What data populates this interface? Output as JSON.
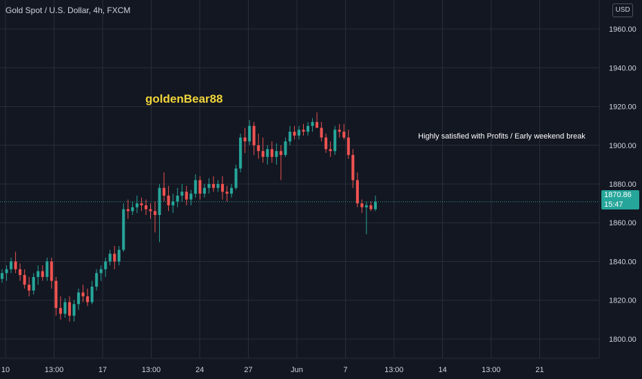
{
  "header": {
    "symbol": "Gold Spot / U.S. Dollar, 4h, FXCM"
  },
  "currency_button": "USD",
  "watermark": "goldenBear88",
  "last_price": {
    "value": "1870.86",
    "countdown": "15:47"
  },
  "colors": {
    "background": "#131722",
    "up": "#26a69a",
    "down": "#ef5350",
    "grid": "#2a2e39",
    "text": "#d1d4dc",
    "watermark": "#f0d53b"
  },
  "chart_data": {
    "type": "candlestick",
    "ylim": [
      1790,
      1975
    ],
    "y_ticks": [
      1800,
      1820,
      1840,
      1860,
      1880,
      1900,
      1920,
      1940,
      1960
    ],
    "x_ticks": [
      "10",
      "13:00",
      "17",
      "13:00",
      "24",
      "27",
      "Jun",
      "7",
      "13:00",
      "14",
      "13:00",
      "21"
    ],
    "annotations": [
      {
        "text": "Highly satisfied with Profits / Early weekend break"
      }
    ],
    "candles": [
      {
        "o": 1831,
        "h": 1836,
        "l": 1829,
        "c": 1834
      },
      {
        "o": 1834,
        "h": 1838,
        "l": 1830,
        "c": 1836
      },
      {
        "o": 1836,
        "h": 1842,
        "l": 1834,
        "c": 1840
      },
      {
        "o": 1840,
        "h": 1845,
        "l": 1834,
        "c": 1836
      },
      {
        "o": 1836,
        "h": 1839,
        "l": 1830,
        "c": 1833
      },
      {
        "o": 1833,
        "h": 1836,
        "l": 1826,
        "c": 1828
      },
      {
        "o": 1828,
        "h": 1832,
        "l": 1822,
        "c": 1825
      },
      {
        "o": 1825,
        "h": 1834,
        "l": 1823,
        "c": 1832
      },
      {
        "o": 1832,
        "h": 1838,
        "l": 1828,
        "c": 1835
      },
      {
        "o": 1835,
        "h": 1838,
        "l": 1830,
        "c": 1832
      },
      {
        "o": 1832,
        "h": 1842,
        "l": 1830,
        "c": 1840
      },
      {
        "o": 1840,
        "h": 1842,
        "l": 1826,
        "c": 1830
      },
      {
        "o": 1830,
        "h": 1832,
        "l": 1812,
        "c": 1816
      },
      {
        "o": 1816,
        "h": 1822,
        "l": 1810,
        "c": 1813
      },
      {
        "o": 1813,
        "h": 1821,
        "l": 1811,
        "c": 1819
      },
      {
        "o": 1819,
        "h": 1822,
        "l": 1809,
        "c": 1812
      },
      {
        "o": 1812,
        "h": 1820,
        "l": 1809,
        "c": 1818
      },
      {
        "o": 1818,
        "h": 1826,
        "l": 1815,
        "c": 1824
      },
      {
        "o": 1824,
        "h": 1828,
        "l": 1819,
        "c": 1822
      },
      {
        "o": 1822,
        "h": 1826,
        "l": 1817,
        "c": 1819
      },
      {
        "o": 1819,
        "h": 1830,
        "l": 1818,
        "c": 1827
      },
      {
        "o": 1827,
        "h": 1836,
        "l": 1825,
        "c": 1834
      },
      {
        "o": 1834,
        "h": 1838,
        "l": 1830,
        "c": 1836
      },
      {
        "o": 1836,
        "h": 1842,
        "l": 1832,
        "c": 1840
      },
      {
        "o": 1840,
        "h": 1846,
        "l": 1838,
        "c": 1844
      },
      {
        "o": 1844,
        "h": 1848,
        "l": 1836,
        "c": 1840
      },
      {
        "o": 1840,
        "h": 1848,
        "l": 1838,
        "c": 1846
      },
      {
        "o": 1846,
        "h": 1870,
        "l": 1845,
        "c": 1867
      },
      {
        "o": 1867,
        "h": 1872,
        "l": 1862,
        "c": 1866
      },
      {
        "o": 1866,
        "h": 1871,
        "l": 1864,
        "c": 1868
      },
      {
        "o": 1868,
        "h": 1874,
        "l": 1865,
        "c": 1870
      },
      {
        "o": 1870,
        "h": 1873,
        "l": 1866,
        "c": 1869
      },
      {
        "o": 1869,
        "h": 1872,
        "l": 1864,
        "c": 1867
      },
      {
        "o": 1867,
        "h": 1870,
        "l": 1862,
        "c": 1866
      },
      {
        "o": 1866,
        "h": 1871,
        "l": 1855,
        "c": 1864
      },
      {
        "o": 1864,
        "h": 1880,
        "l": 1850,
        "c": 1878
      },
      {
        "o": 1878,
        "h": 1886,
        "l": 1871,
        "c": 1874
      },
      {
        "o": 1874,
        "h": 1879,
        "l": 1866,
        "c": 1869
      },
      {
        "o": 1869,
        "h": 1875,
        "l": 1865,
        "c": 1871
      },
      {
        "o": 1871,
        "h": 1878,
        "l": 1868,
        "c": 1874
      },
      {
        "o": 1874,
        "h": 1880,
        "l": 1871,
        "c": 1876
      },
      {
        "o": 1876,
        "h": 1879,
        "l": 1869,
        "c": 1872
      },
      {
        "o": 1872,
        "h": 1877,
        "l": 1869,
        "c": 1875
      },
      {
        "o": 1875,
        "h": 1885,
        "l": 1873,
        "c": 1882
      },
      {
        "o": 1882,
        "h": 1884,
        "l": 1872,
        "c": 1875
      },
      {
        "o": 1875,
        "h": 1880,
        "l": 1873,
        "c": 1878
      },
      {
        "o": 1878,
        "h": 1883,
        "l": 1875,
        "c": 1880
      },
      {
        "o": 1880,
        "h": 1884,
        "l": 1876,
        "c": 1878
      },
      {
        "o": 1878,
        "h": 1882,
        "l": 1876,
        "c": 1880
      },
      {
        "o": 1880,
        "h": 1884,
        "l": 1872,
        "c": 1876
      },
      {
        "o": 1876,
        "h": 1879,
        "l": 1871,
        "c": 1875
      },
      {
        "o": 1875,
        "h": 1880,
        "l": 1873,
        "c": 1878
      },
      {
        "o": 1878,
        "h": 1890,
        "l": 1877,
        "c": 1888
      },
      {
        "o": 1888,
        "h": 1906,
        "l": 1886,
        "c": 1904
      },
      {
        "o": 1904,
        "h": 1909,
        "l": 1896,
        "c": 1902
      },
      {
        "o": 1902,
        "h": 1913,
        "l": 1900,
        "c": 1910
      },
      {
        "o": 1910,
        "h": 1912,
        "l": 1895,
        "c": 1900
      },
      {
        "o": 1900,
        "h": 1906,
        "l": 1893,
        "c": 1897
      },
      {
        "o": 1897,
        "h": 1904,
        "l": 1891,
        "c": 1894
      },
      {
        "o": 1894,
        "h": 1900,
        "l": 1890,
        "c": 1898
      },
      {
        "o": 1898,
        "h": 1902,
        "l": 1891,
        "c": 1894
      },
      {
        "o": 1894,
        "h": 1901,
        "l": 1890,
        "c": 1897
      },
      {
        "o": 1897,
        "h": 1900,
        "l": 1882,
        "c": 1895
      },
      {
        "o": 1895,
        "h": 1904,
        "l": 1894,
        "c": 1902
      },
      {
        "o": 1902,
        "h": 1910,
        "l": 1900,
        "c": 1907
      },
      {
        "o": 1907,
        "h": 1910,
        "l": 1903,
        "c": 1905
      },
      {
        "o": 1905,
        "h": 1910,
        "l": 1903,
        "c": 1908
      },
      {
        "o": 1908,
        "h": 1911,
        "l": 1905,
        "c": 1907
      },
      {
        "o": 1907,
        "h": 1912,
        "l": 1905,
        "c": 1910
      },
      {
        "o": 1910,
        "h": 1914,
        "l": 1907,
        "c": 1912
      },
      {
        "o": 1912,
        "h": 1917,
        "l": 1910,
        "c": 1909
      },
      {
        "o": 1909,
        "h": 1912,
        "l": 1902,
        "c": 1904
      },
      {
        "o": 1904,
        "h": 1906,
        "l": 1896,
        "c": 1898
      },
      {
        "o": 1898,
        "h": 1902,
        "l": 1894,
        "c": 1897
      },
      {
        "o": 1897,
        "h": 1910,
        "l": 1895,
        "c": 1908
      },
      {
        "o": 1908,
        "h": 1911,
        "l": 1904,
        "c": 1907
      },
      {
        "o": 1907,
        "h": 1911,
        "l": 1903,
        "c": 1904
      },
      {
        "o": 1904,
        "h": 1908,
        "l": 1893,
        "c": 1895
      },
      {
        "o": 1895,
        "h": 1898,
        "l": 1878,
        "c": 1882
      },
      {
        "o": 1882,
        "h": 1886,
        "l": 1868,
        "c": 1870
      },
      {
        "o": 1870,
        "h": 1872,
        "l": 1865,
        "c": 1868
      },
      {
        "o": 1868,
        "h": 1871,
        "l": 1854,
        "c": 1869
      },
      {
        "o": 1869,
        "h": 1871,
        "l": 1866,
        "c": 1867
      },
      {
        "o": 1867,
        "h": 1874,
        "l": 1866,
        "c": 1870.86
      }
    ]
  }
}
